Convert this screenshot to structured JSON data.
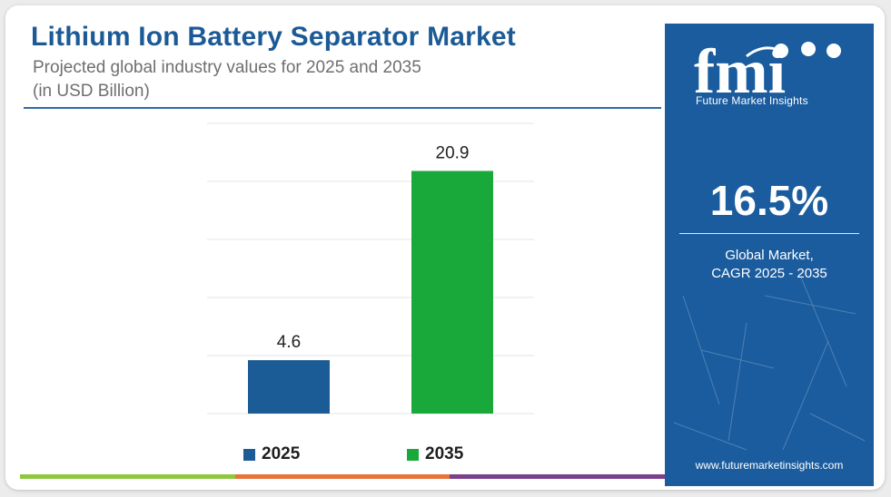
{
  "header": {
    "title": "Lithium Ion Battery Separator Market",
    "subtitle": "Projected global industry values for 2025 and 2035",
    "unit_note": "(in USD Billion)"
  },
  "chart_data": {
    "type": "bar",
    "categories": [
      "2025",
      "2035"
    ],
    "values": [
      4.6,
      20.9
    ],
    "data_labels": [
      "4.6",
      "20.9"
    ],
    "colors": [
      "#1b5c96",
      "#19a83a"
    ],
    "ylim": [
      0,
      25
    ],
    "grid": true,
    "legend": {
      "placement": "bottom",
      "entries": [
        "2025",
        "2035"
      ]
    }
  },
  "sidebar": {
    "logo_text": "fmi",
    "logo_caption": "Future Market Insights",
    "cagr_value": "16.5%",
    "cagr_label_line1": "Global Market,",
    "cagr_label_line2": "CAGR 2025 - 2035",
    "website": "www.futuremarketinsights.com",
    "background_color": "#1b5c9e"
  },
  "bottom_bar_colors": [
    "#8dc63f",
    "#e8733a",
    "#7b3f8c"
  ]
}
